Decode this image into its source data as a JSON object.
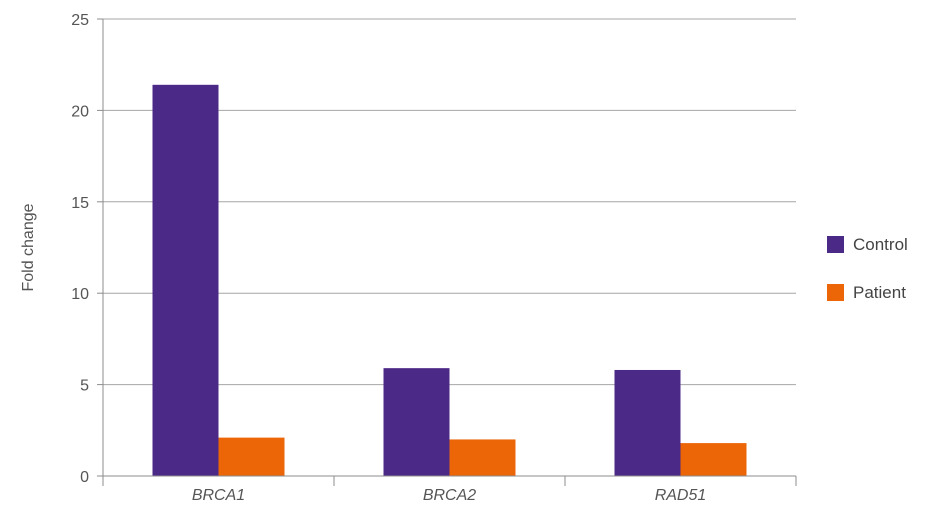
{
  "chart_data": {
    "type": "bar",
    "title": "",
    "xlabel": "",
    "ylabel": "Fold change",
    "categories": [
      "BRCA1",
      "BRCA2",
      "RAD51"
    ],
    "series": [
      {
        "name": "Control",
        "color": "#4b2a87",
        "values": [
          21.4,
          5.9,
          5.8
        ]
      },
      {
        "name": "Patient",
        "color": "#ec6608",
        "values": [
          2.1,
          2.0,
          1.8
        ]
      }
    ],
    "ylim": [
      0,
      25
    ],
    "yticks": [
      0,
      5,
      10,
      15,
      20,
      25
    ],
    "grid": true,
    "legend_position": "right"
  }
}
